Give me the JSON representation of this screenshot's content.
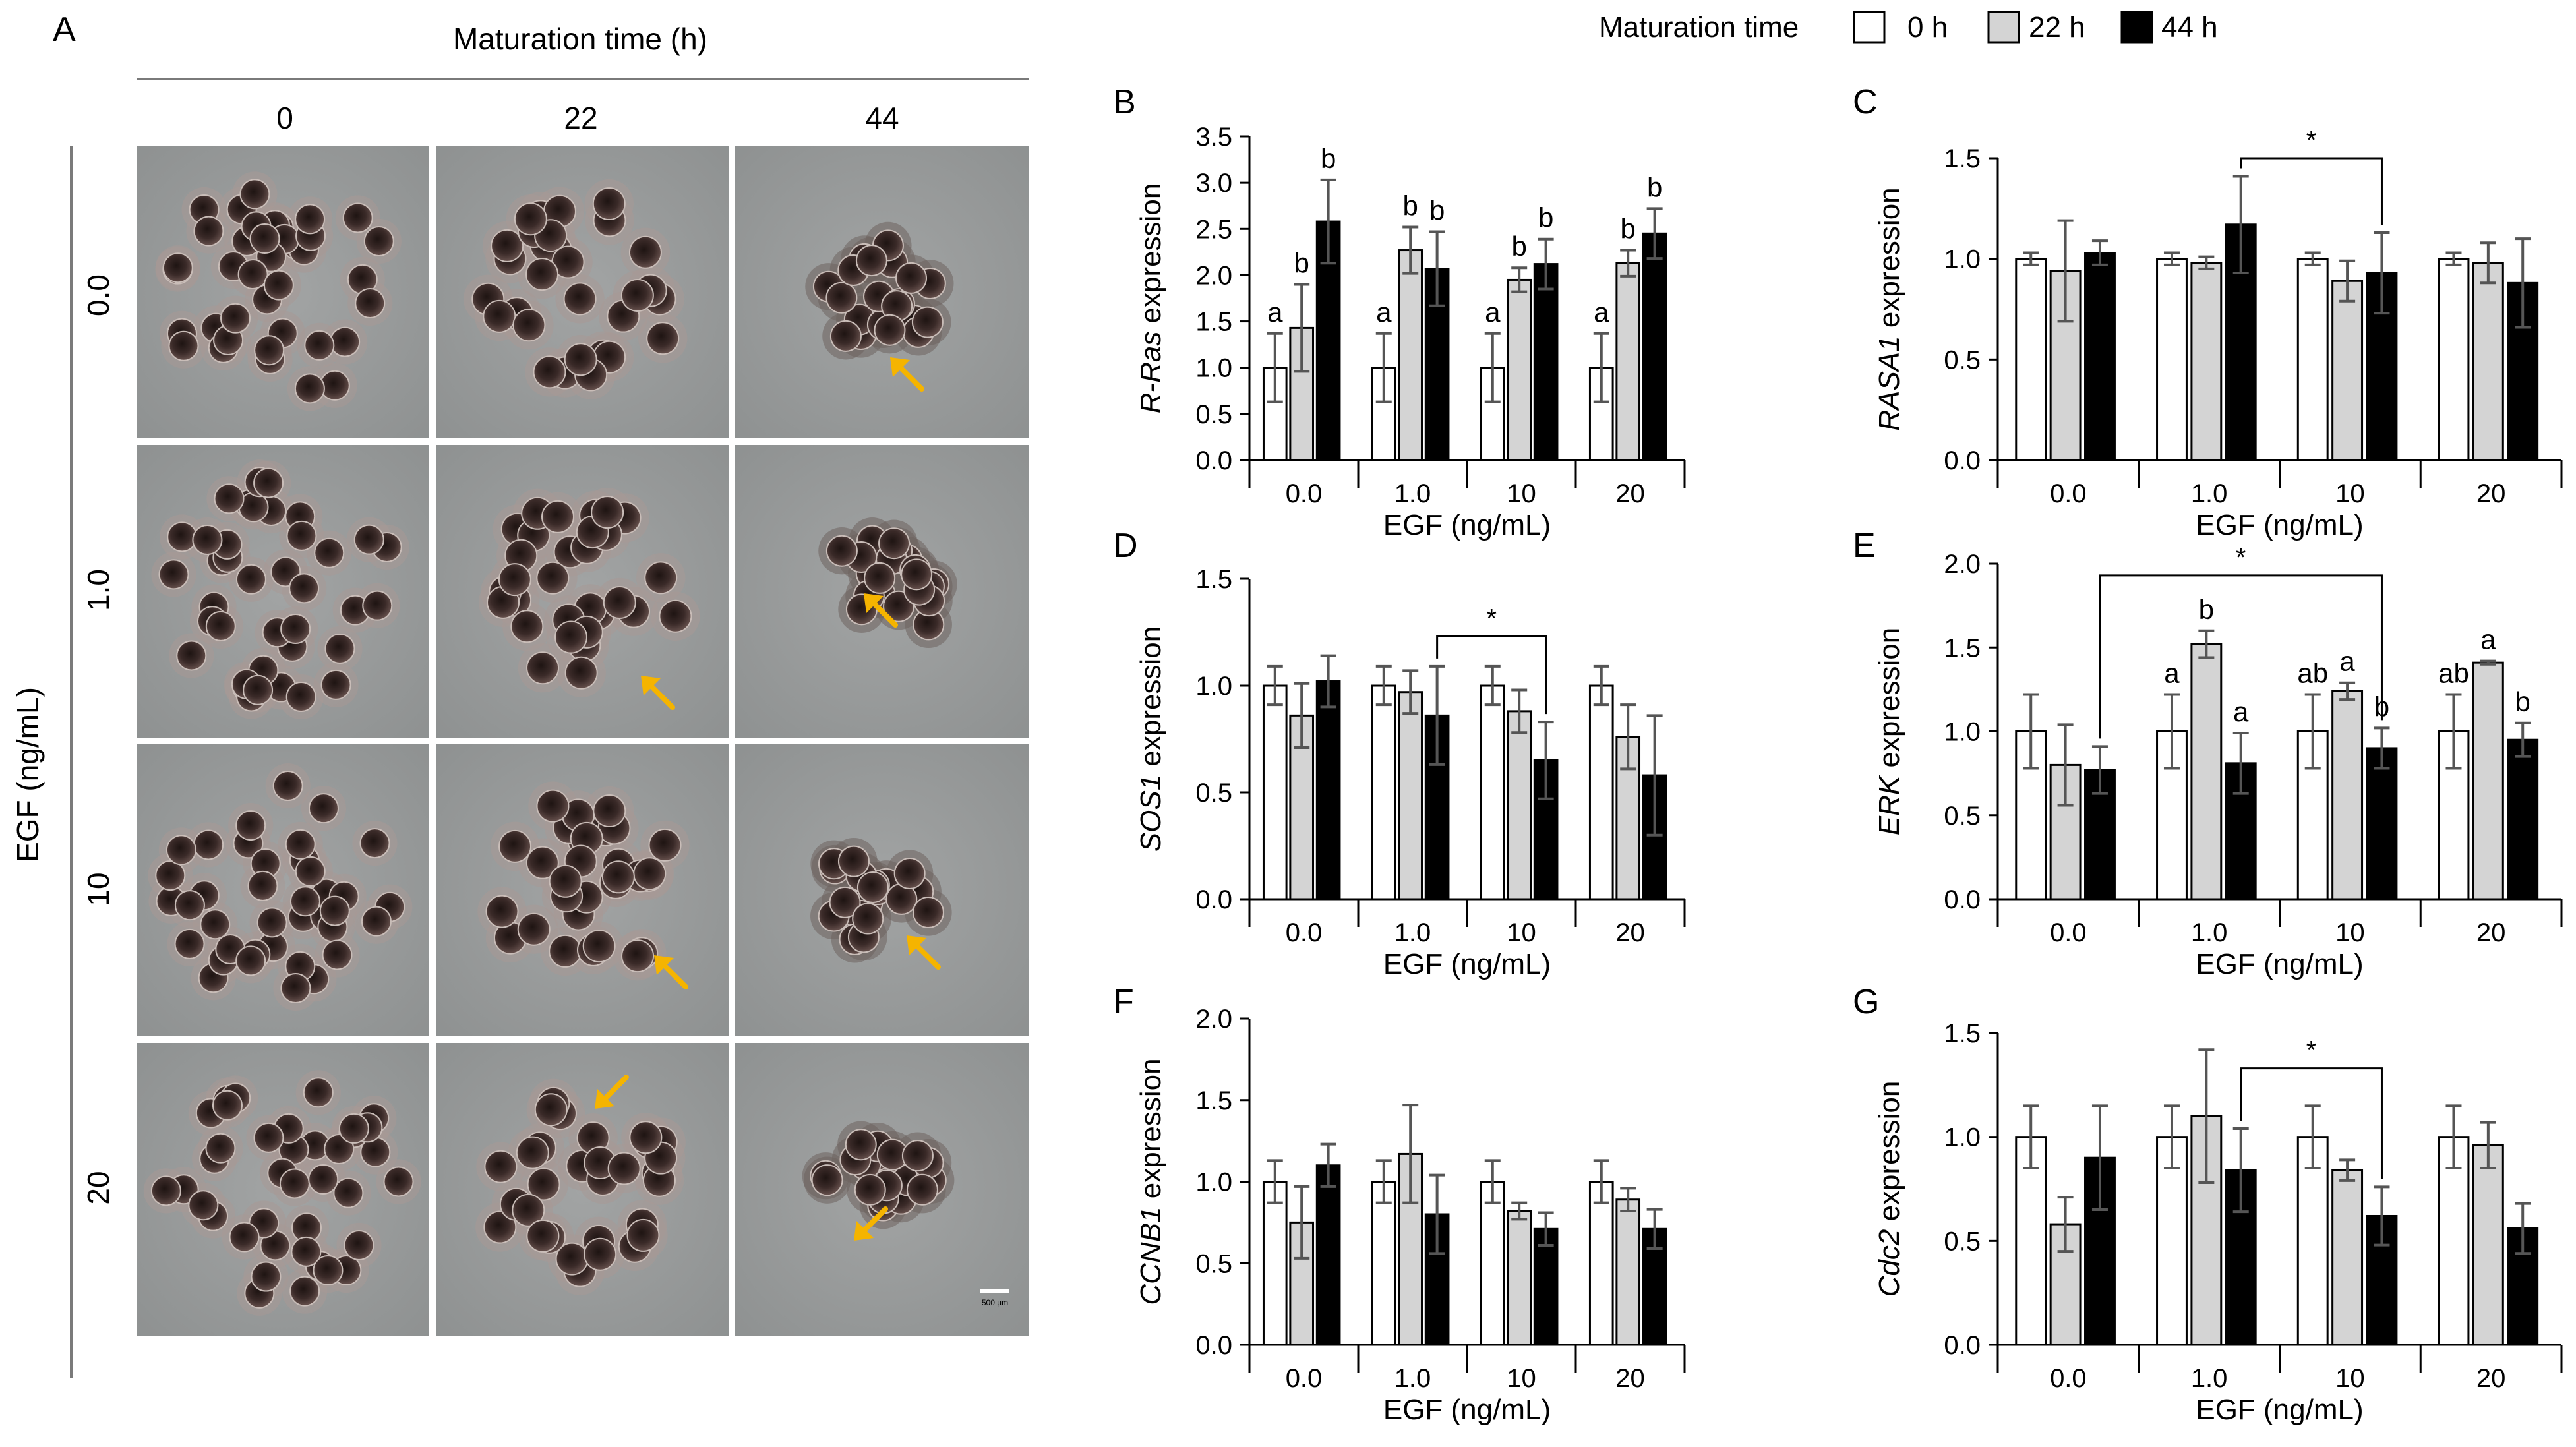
{
  "panel_a": {
    "letter": "A",
    "col_header": "Maturation time (h)",
    "col_labels": [
      "0",
      "22",
      "44"
    ],
    "row_header": "EGF (ng/mL)",
    "row_labels": [
      "0.0",
      "1.0",
      "10",
      "20"
    ],
    "scale_bar": "500 µm",
    "arrow_color": "#f5b400",
    "photo_background": "#8d9090",
    "oocyte_color": "#3a2a28"
  },
  "legend": {
    "title": "Maturation time",
    "items": [
      {
        "label": "0 h",
        "color": "#ffffff"
      },
      {
        "label": "22 h",
        "color": "#d4d4d4"
      },
      {
        "label": "44 h",
        "color": "#000000"
      }
    ]
  },
  "chart_data": [
    {
      "panel": "B",
      "type": "bar",
      "ylabel_italic": "R-Ras",
      "ylabel_rest": " expression",
      "xlabel": "EGF (ng/mL)",
      "categories": [
        "0.0",
        "1.0",
        "10",
        "20"
      ],
      "ylim": [
        0,
        3.5
      ],
      "yticks": [
        "0.0",
        "0.5",
        "1.0",
        "1.5",
        "2.0",
        "2.5",
        "3.0",
        "3.5"
      ],
      "series": [
        {
          "name": "0 h",
          "values": [
            1.0,
            1.0,
            1.0,
            1.0
          ],
          "errors": [
            0.37,
            0.37,
            0.37,
            0.37
          ],
          "labels": [
            "a",
            "a",
            "a",
            "a"
          ]
        },
        {
          "name": "22 h",
          "values": [
            1.43,
            2.27,
            1.95,
            2.13
          ],
          "errors": [
            0.47,
            0.25,
            0.13,
            0.14
          ],
          "labels": [
            "b",
            "b",
            "b",
            "b"
          ]
        },
        {
          "name": "44 h",
          "values": [
            2.58,
            2.07,
            2.12,
            2.45
          ],
          "errors": [
            0.45,
            0.4,
            0.27,
            0.27
          ],
          "labels": [
            "b",
            "b",
            "b",
            "b"
          ]
        }
      ],
      "bracket": null
    },
    {
      "panel": "C",
      "type": "bar",
      "ylabel_italic": "RASA1",
      "ylabel_rest": " expression",
      "xlabel": "EGF (ng/mL)",
      "categories": [
        "0.0",
        "1.0",
        "10",
        "20"
      ],
      "ylim": [
        0,
        1.5
      ],
      "yticks": [
        "0.0",
        "0.5",
        "1.0",
        "1.5"
      ],
      "series": [
        {
          "name": "0 h",
          "values": [
            1.0,
            1.0,
            1.0,
            1.0
          ],
          "errors": [
            0.03,
            0.03,
            0.03,
            0.03
          ],
          "labels": null
        },
        {
          "name": "22 h",
          "values": [
            0.94,
            0.98,
            0.89,
            0.98
          ],
          "errors": [
            0.25,
            0.03,
            0.1,
            0.1
          ],
          "labels": null
        },
        {
          "name": "44 h",
          "values": [
            1.03,
            1.17,
            0.93,
            0.88
          ],
          "errors": [
            0.06,
            0.24,
            0.2,
            0.22
          ],
          "labels": null
        }
      ],
      "bracket": {
        "from_cat": 1,
        "to_cat": 2,
        "series": 2,
        "height": 1.5,
        "label": "*"
      }
    },
    {
      "panel": "D",
      "type": "bar",
      "ylabel_italic": "SOS1",
      "ylabel_rest": " expression",
      "xlabel": "EGF (ng/mL)",
      "categories": [
        "0.0",
        "1.0",
        "10",
        "20"
      ],
      "ylim": [
        0,
        1.5
      ],
      "yticks": [
        "0.0",
        "0.5",
        "1.0",
        "1.5"
      ],
      "series": [
        {
          "name": "0 h",
          "values": [
            1.0,
            1.0,
            1.0,
            1.0
          ],
          "errors": [
            0.09,
            0.09,
            0.09,
            0.09
          ],
          "labels": null
        },
        {
          "name": "22 h",
          "values": [
            0.86,
            0.97,
            0.88,
            0.76
          ],
          "errors": [
            0.15,
            0.1,
            0.1,
            0.15
          ],
          "labels": null
        },
        {
          "name": "44 h",
          "values": [
            1.02,
            0.86,
            0.65,
            0.58
          ],
          "errors": [
            0.12,
            0.23,
            0.18,
            0.28
          ],
          "labels": null
        }
      ],
      "bracket": {
        "from_cat": 1,
        "to_cat": 2,
        "series": 2,
        "height": 1.23,
        "label": "*"
      }
    },
    {
      "panel": "E",
      "type": "bar",
      "ylabel_italic": "ERK",
      "ylabel_rest": " expression",
      "xlabel": "EGF (ng/mL)",
      "categories": [
        "0.0",
        "1.0",
        "10",
        "20"
      ],
      "ylim": [
        0,
        2.0
      ],
      "yticks": [
        "0.0",
        "0.5",
        "1.0",
        "1.5",
        "2.0"
      ],
      "series": [
        {
          "name": "0 h",
          "values": [
            1.0,
            1.0,
            1.0,
            1.0
          ],
          "errors": [
            0.22,
            0.22,
            0.22,
            0.22
          ],
          "labels": [
            null,
            "a",
            "ab",
            "ab"
          ]
        },
        {
          "name": "22 h",
          "values": [
            0.8,
            1.52,
            1.24,
            1.41
          ],
          "errors": [
            0.24,
            0.08,
            0.05,
            0.01
          ],
          "labels": [
            null,
            "b",
            "a",
            "a"
          ]
        },
        {
          "name": "44 h",
          "values": [
            0.77,
            0.81,
            0.9,
            0.95
          ],
          "errors": [
            0.14,
            0.18,
            0.12,
            0.1
          ],
          "labels": [
            null,
            "a",
            "b",
            "b"
          ]
        }
      ],
      "bracket": {
        "from_cat": 0,
        "to_cat": 2,
        "series": 2,
        "height": 1.93,
        "label": "*"
      }
    },
    {
      "panel": "F",
      "type": "bar",
      "ylabel_italic": "CCNB1",
      "ylabel_rest": " expression",
      "xlabel": "EGF (ng/mL)",
      "categories": [
        "0.0",
        "1.0",
        "10",
        "20"
      ],
      "ylim": [
        0,
        2.0
      ],
      "yticks": [
        "0.0",
        "0.5",
        "1.0",
        "1.5",
        "2.0"
      ],
      "series": [
        {
          "name": "0 h",
          "values": [
            1.0,
            1.0,
            1.0,
            1.0
          ],
          "errors": [
            0.13,
            0.13,
            0.13,
            0.13
          ],
          "labels": null
        },
        {
          "name": "22 h",
          "values": [
            0.75,
            1.17,
            0.82,
            0.89
          ],
          "errors": [
            0.22,
            0.3,
            0.05,
            0.07
          ],
          "labels": null
        },
        {
          "name": "44 h",
          "values": [
            1.1,
            0.8,
            0.71,
            0.71
          ],
          "errors": [
            0.13,
            0.24,
            0.1,
            0.12
          ],
          "labels": null
        }
      ],
      "bracket": null
    },
    {
      "panel": "G",
      "type": "bar",
      "ylabel_italic": "Cdc2",
      "ylabel_rest": " expression",
      "xlabel": "EGF (ng/mL)",
      "categories": [
        "0.0",
        "1.0",
        "10",
        "20"
      ],
      "ylim": [
        0,
        1.5
      ],
      "yticks": [
        "0.0",
        "0.5",
        "1.0",
        "1.5"
      ],
      "series": [
        {
          "name": "0 h",
          "values": [
            1.0,
            1.0,
            1.0,
            1.0
          ],
          "errors": [
            0.15,
            0.15,
            0.15,
            0.15
          ],
          "labels": null
        },
        {
          "name": "22 h",
          "values": [
            0.58,
            1.1,
            0.84,
            0.96
          ],
          "errors": [
            0.13,
            0.32,
            0.05,
            0.11
          ],
          "labels": null
        },
        {
          "name": "44 h",
          "values": [
            0.9,
            0.84,
            0.62,
            0.56
          ],
          "errors": [
            0.25,
            0.2,
            0.14,
            0.12
          ],
          "labels": null
        }
      ],
      "bracket": {
        "from_cat": 1,
        "to_cat": 2,
        "series": 2,
        "height": 1.33,
        "label": "*"
      }
    }
  ]
}
